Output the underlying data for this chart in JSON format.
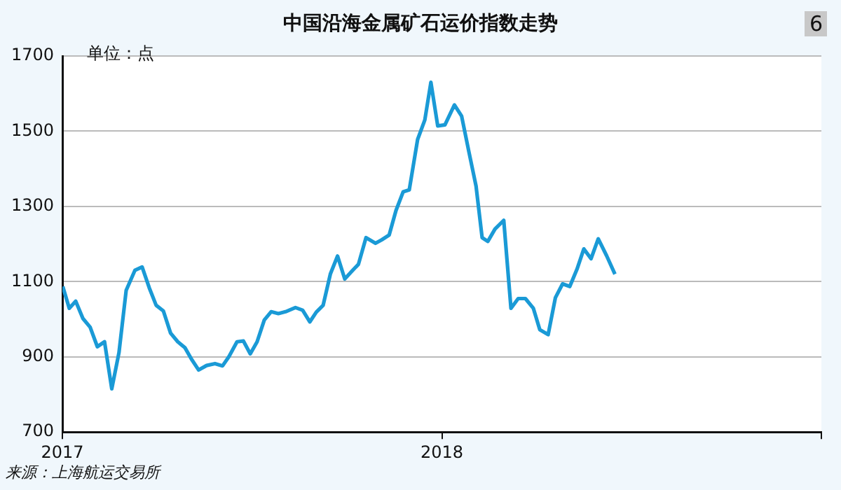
{
  "chart_data": {
    "type": "line",
    "title": "中国沿海金属矿石运价指数走势",
    "ylabel": "单位：点",
    "annotations": [
      "6",
      "来源：上海航运交易所"
    ],
    "x": [
      2017.001,
      2017.018,
      2017.035,
      2017.054,
      2017.073,
      2017.092,
      2017.111,
      2017.13,
      2017.149,
      2017.168,
      2017.191,
      2017.21,
      2017.229,
      2017.247,
      2017.266,
      2017.285,
      2017.304,
      2017.323,
      2017.34,
      2017.359,
      2017.38,
      2017.402,
      2017.422,
      2017.439,
      2017.46,
      2017.477,
      2017.495,
      2017.513,
      2017.532,
      2017.55,
      2017.569,
      2017.588,
      2017.614,
      2017.633,
      2017.652,
      2017.669,
      2017.687,
      2017.706,
      2017.725,
      2017.744,
      2017.763,
      2017.78,
      2017.8,
      2017.825,
      2017.841,
      2017.861,
      2017.879,
      2017.898,
      2017.914,
      2017.936,
      2017.955,
      2017.971,
      2017.989,
      2018.008,
      2018.033,
      2018.052,
      2018.071,
      2018.09,
      2018.106,
      2018.121,
      2018.14,
      2018.163,
      2018.182,
      2018.201,
      2018.22,
      2018.241,
      2018.258,
      2018.28,
      2018.299,
      2018.318,
      2018.337,
      2018.356,
      2018.374,
      2018.393,
      2018.412,
      2018.434,
      2018.456
    ],
    "series": [
      {
        "color": "#1a9ad6",
        "values": [
          1087,
          1029,
          1048,
          1002,
          979,
          927,
          940,
          815,
          911,
          1077,
          1130,
          1139,
          1083,
          1037,
          1022,
          963,
          940,
          924,
          894,
          865,
          877,
          882,
          876,
          901,
          940,
          942,
          908,
          940,
          998,
          1020,
          1015,
          1020,
          1031,
          1024,
          993,
          1019,
          1037,
          1120,
          1168,
          1107,
          1128,
          1146,
          1217,
          1202,
          1211,
          1224,
          1289,
          1339,
          1344,
          1478,
          1530,
          1630,
          1514,
          1517,
          1570,
          1540,
          1446,
          1354,
          1217,
          1207,
          1240,
          1263,
          1029,
          1055,
          1055,
          1029,
          972,
          959,
          1057,
          1094,
          1087,
          1133,
          1187,
          1161,
          1214,
          1169,
          1120
        ]
      }
    ],
    "xlim": [
      2017,
      2019
    ],
    "xticks": [
      2017,
      2018,
      {
        "value": 2019,
        "label": null
      }
    ],
    "ylim": [
      700,
      1700
    ],
    "yticks": [
      700,
      900,
      1100,
      1300,
      1500,
      1700
    ],
    "grid": "y",
    "legend": false,
    "marker": "none",
    "line_style": "solid"
  }
}
